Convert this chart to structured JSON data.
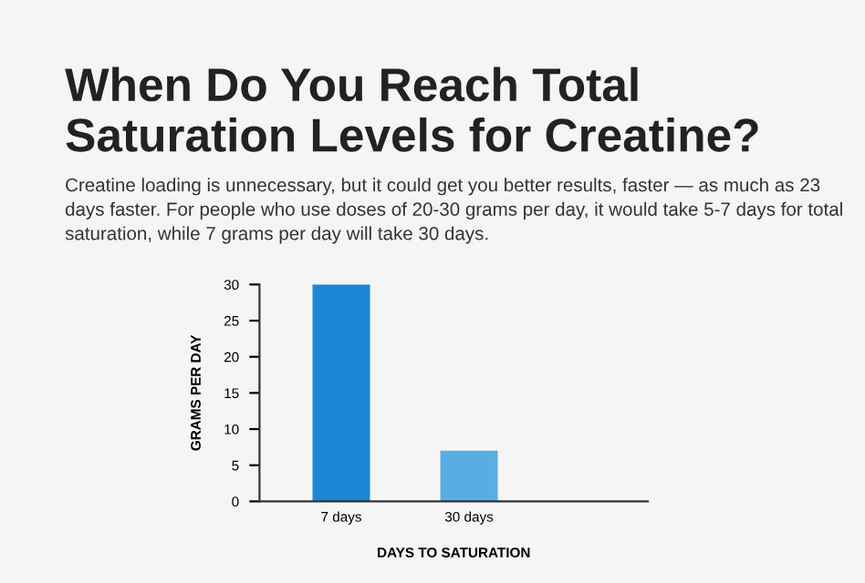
{
  "chart_data": {
    "type": "bar",
    "title": "When Do You Reach Total Saturation Levels for Creatine?",
    "subtitle": "Creatine loading is unnecessary, but it could get you better results, faster — as much as 23 days faster. For people who use doses of 20-30 grams per day, it would take 5-7 days for total saturation, while 7 grams per day will take 30 days.",
    "xlabel": "DAYS TO SATURATION",
    "ylabel": "GRAMS PER DAY",
    "categories": [
      "7 days",
      "30 days"
    ],
    "values": [
      30,
      7
    ],
    "colors": [
      "#1a87d4",
      "#5aade3"
    ],
    "ylim": [
      0,
      30
    ],
    "yticks": [
      0,
      5,
      10,
      15,
      20,
      25,
      30
    ],
    "grid": false,
    "legend": false
  }
}
